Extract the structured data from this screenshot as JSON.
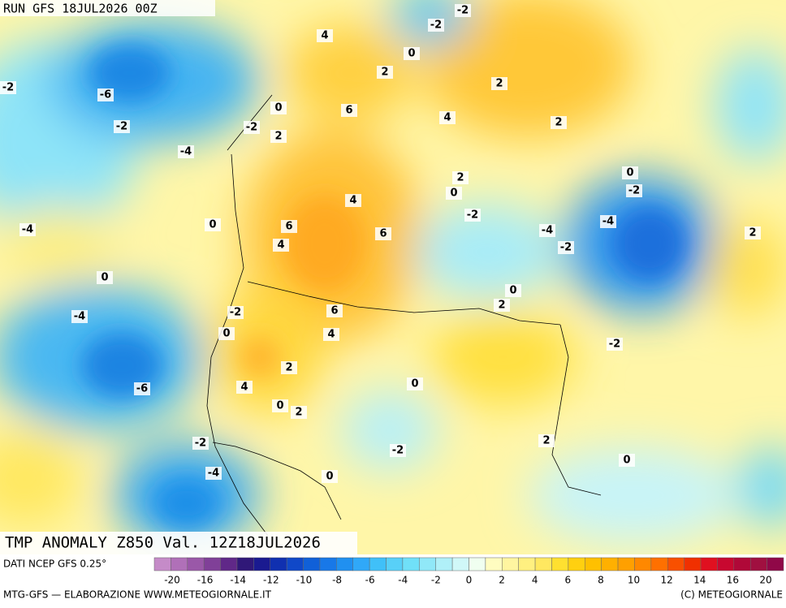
{
  "header": {
    "run": "RUN GFS 18JUL2026 00Z"
  },
  "title": "TMP ANOMALY Z850 Val. 12Z18JUL2026",
  "contour_labels": [
    -2,
    -2,
    4,
    0,
    2,
    2,
    -6,
    -2,
    0,
    6,
    4,
    -2,
    -2,
    2,
    2,
    -4,
    0,
    2,
    0,
    -2,
    4,
    -2,
    -4,
    0,
    6,
    -4,
    -4,
    6,
    2,
    4,
    -2,
    0,
    0,
    2,
    -2,
    6,
    -4,
    0,
    4,
    -2,
    2,
    -6,
    4,
    0,
    0,
    2,
    -2,
    -2,
    2,
    0,
    -4,
    0
  ],
  "footer": {
    "source": "DATI NCEP GFS 0.25°",
    "credit": "MTG-GFS — ELABORAZIONE WWW.METEOGIORNALE.IT",
    "copyright": "(C) METEOGIORNALE"
  },
  "colorbar": {
    "labels": [
      -20,
      -16,
      -14,
      -12,
      -10,
      -8,
      -6,
      -4,
      -2,
      0,
      2,
      4,
      6,
      8,
      10,
      12,
      14,
      16,
      20
    ],
    "colors": [
      "#c58bc8",
      "#b070b8",
      "#9a58a8",
      "#804098",
      "#602888",
      "#301878",
      "#1a1a90",
      "#1030b0",
      "#1048c8",
      "#1060d8",
      "#1878e8",
      "#2090f0",
      "#30a8f8",
      "#40c0f8",
      "#58d0f8",
      "#70e0f8",
      "#90e8f8",
      "#b0f0f8",
      "#d0f8f8",
      "#f0fff0",
      "#fffcc0",
      "#fff5a0",
      "#fff080",
      "#ffe860",
      "#ffe030",
      "#ffd010",
      "#ffc000",
      "#ffb000",
      "#ffa000",
      "#ff8800",
      "#ff7000",
      "#f85000",
      "#f03000",
      "#e01020",
      "#c80830",
      "#b00838",
      "#a01040",
      "#900848"
    ]
  }
}
